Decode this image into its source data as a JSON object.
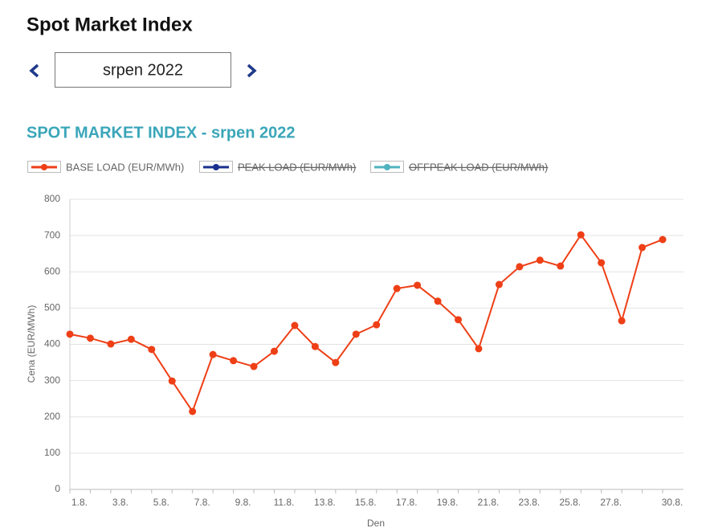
{
  "header": {
    "title": "Spot Market Index",
    "period": "srpen 2022"
  },
  "chart_data": {
    "type": "line",
    "title": "SPOT MARKET INDEX - srpen 2022",
    "x_label": "Den",
    "y_label": "Cena (EUR/MWh)",
    "categories": [
      "1.8.",
      null,
      "3.8.",
      null,
      "5.8.",
      null,
      "7.8.",
      null,
      "9.8.",
      null,
      "11.8.",
      null,
      "13.8.",
      null,
      "15.8.",
      null,
      "17.8.",
      null,
      "19.8.",
      null,
      "21.8.",
      null,
      "23.8.",
      null,
      "25.8.",
      null,
      "27.8.",
      null,
      null,
      "30.8."
    ],
    "series": [
      {
        "name": "BASE LOAD (EUR/MWh)",
        "color": "#ee3f16",
        "visible": true,
        "values": [
          428,
          417,
          401,
          414,
          386,
          299,
          215,
          372,
          355,
          339,
          381,
          452,
          394,
          350,
          428,
          454,
          554,
          563,
          519,
          468,
          388,
          565,
          614,
          632,
          616,
          702,
          625,
          465,
          667,
          689
        ]
      },
      {
        "name": "PEAK LOAD (EUR/MWh)",
        "color": "#1b2f8f",
        "visible": false
      },
      {
        "name": "OFFPEAK LOAD (EUR/MWh)",
        "color": "#4fb3bf",
        "visible": false
      }
    ],
    "ylim": [
      0,
      800
    ],
    "yticks": [
      0,
      100,
      200,
      300,
      400,
      500,
      600,
      700,
      800
    ],
    "grid": true
  }
}
